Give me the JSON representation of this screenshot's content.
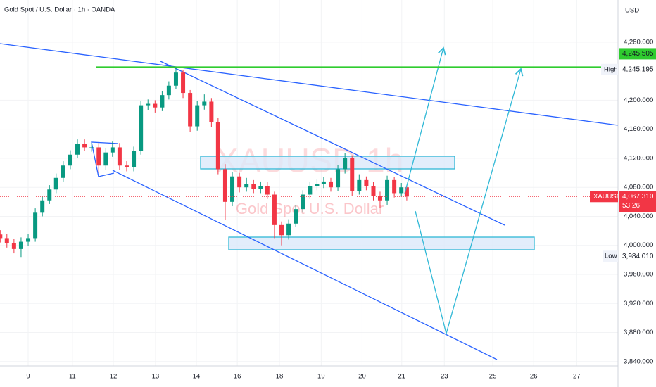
{
  "chart_data": {
    "type": "candlestick",
    "title": "Gold Spot / U.S. Dollar · 1h · OANDA",
    "watermark": "XAUUSD 1h",
    "watermark_subtitle": "Gold Spot U.S. Dollar",
    "currency": "USD",
    "up_color": "#089981",
    "down_color": "#f23645",
    "grid": true,
    "xlim": [
      -0.675,
      14.13
    ],
    "xticks": [
      {
        "value": 0,
        "label": "9"
      },
      {
        "value": 1.06,
        "label": "11"
      },
      {
        "value": 2.04,
        "label": "12"
      },
      {
        "value": 3.05,
        "label": "13"
      },
      {
        "value": 4.03,
        "label": "14"
      },
      {
        "value": 5.01,
        "label": "16"
      },
      {
        "value": 6.02,
        "label": "18"
      },
      {
        "value": 7.02,
        "label": "19"
      },
      {
        "value": 8,
        "label": "20"
      },
      {
        "value": 8.95,
        "label": "21"
      },
      {
        "value": 9.97,
        "label": "23"
      },
      {
        "value": 11.13,
        "label": "25"
      },
      {
        "value": 12.11,
        "label": "26"
      },
      {
        "value": 13.14,
        "label": "27"
      }
    ],
    "ylim": [
      3834,
      4338
    ],
    "yticks": [
      {
        "value": 4280,
        "label": "4,280.000"
      },
      {
        "value": 4200,
        "label": "4,200.000"
      },
      {
        "value": 4160,
        "label": "4,160.000"
      },
      {
        "value": 4120,
        "label": "4,120.000"
      },
      {
        "value": 4080,
        "label": "4,080.000"
      },
      {
        "value": 4040,
        "label": "4,040.000"
      },
      {
        "value": 4000,
        "label": "4,000.000"
      },
      {
        "value": 3960,
        "label": "3,960.000"
      },
      {
        "value": 3920,
        "label": "3,920.000"
      },
      {
        "value": 3880,
        "label": "3,880.000"
      },
      {
        "value": 3840,
        "label": "3,840.000"
      }
    ],
    "x": [
      -0.67,
      -0.51,
      -0.34,
      -0.17,
      0,
      0.17,
      0.34,
      0.51,
      0.67,
      0.84,
      1.01,
      1.18,
      1.35,
      1.52,
      1.69,
      1.86,
      2.02,
      2.19,
      2.36,
      2.53,
      2.7,
      2.87,
      3.04,
      3.21,
      3.37,
      3.54,
      3.71,
      3.88,
      4.05,
      4.22,
      4.39,
      4.55,
      4.72,
      4.89,
      5.06,
      5.23,
      5.4,
      5.57,
      5.73,
      5.9,
      6.07,
      6.24,
      6.41,
      6.58,
      6.75,
      6.92,
      7.08,
      7.25,
      7.42,
      7.59,
      7.76,
      7.93,
      8.1,
      8.27,
      8.43,
      8.6,
      8.77,
      8.94,
      9.07
    ],
    "open": [
      4015,
      4010,
      4003,
      3995,
      4005,
      4010,
      4045,
      4062,
      4077,
      4093,
      4110,
      4125,
      4140,
      4135,
      4135,
      4110,
      4128,
      4135,
      4110,
      4108,
      4130,
      4193,
      4195,
      4190,
      4207,
      4220,
      4238,
      4210,
      4164,
      4193,
      4198,
      4170,
      4105,
      4060,
      4095,
      4080,
      4085,
      4078,
      4082,
      4070,
      4028,
      4014,
      4030,
      4050,
      4070,
      4082,
      4085,
      4088,
      4080,
      4105,
      4120,
      4075,
      4090,
      4082,
      4068,
      4062,
      4090,
      4072,
      4080
    ],
    "high": [
      4021,
      4016,
      4009,
      4011,
      4016,
      4051,
      4068,
      4083,
      4099,
      4116,
      4131,
      4146,
      4146,
      4141,
      4141,
      4134,
      4143,
      4141,
      4116,
      4136,
      4199,
      4201,
      4200,
      4213,
      4226,
      4245.195,
      4242,
      4214,
      4199,
      4208,
      4203,
      4176,
      4112,
      4101,
      4100,
      4093,
      4090,
      4088,
      4087,
      4074,
      4033,
      4036,
      4056,
      4076,
      4088,
      4091,
      4094,
      4093,
      4111,
      4127,
      4124,
      4098,
      4095,
      4087,
      4074,
      4096,
      4094,
      4086,
      4083
    ],
    "low": [
      4004,
      3997,
      3989,
      3984.01,
      3999,
      4005,
      4040,
      4057,
      4072,
      4088,
      4105,
      4120,
      4130,
      4129,
      4100,
      4104,
      4122,
      4104,
      4102,
      4102,
      4125,
      4186,
      4183,
      4185,
      4201,
      4215,
      4203,
      4156,
      4158,
      4187,
      4163,
      4098,
      4035,
      4054,
      4073,
      4074,
      4072,
      4072,
      4064,
      4010,
      4000,
      4008,
      4025,
      4045,
      4064,
      4076,
      4079,
      4074,
      4075,
      4099,
      4068,
      4070,
      4076,
      4062,
      4052,
      4056,
      4066,
      4067,
      4062
    ],
    "close": [
      4010,
      4003,
      3995,
      4005,
      4010,
      4045,
      4062,
      4077,
      4093,
      4110,
      4125,
      4140,
      4135,
      4135,
      4110,
      4128,
      4135,
      4110,
      4108,
      4130,
      4193,
      4195,
      4190,
      4207,
      4220,
      4238,
      4210,
      4164,
      4193,
      4198,
      4170,
      4105,
      4060,
      4095,
      4080,
      4085,
      4078,
      4082,
      4070,
      4028,
      4014,
      4030,
      4050,
      4070,
      4082,
      4085,
      4088,
      4080,
      4105,
      4120,
      4075,
      4090,
      4082,
      4068,
      4062,
      4090,
      4072,
      4080,
      4067.31
    ],
    "line_marker": {
      "value": 4245.505,
      "label": "4,245.505",
      "color": "#2fcc2f"
    },
    "high_marker": {
      "text": "High",
      "value": 4245.195,
      "label": "4,245.195"
    },
    "last_price": {
      "symbol": "XAUUSD",
      "value": 4067.31,
      "label": "4,067.310",
      "countdown": "53:26",
      "color": "#f23645"
    },
    "low_marker": {
      "text": "Low",
      "value": 3984.01,
      "label": "3,984.010"
    }
  }
}
